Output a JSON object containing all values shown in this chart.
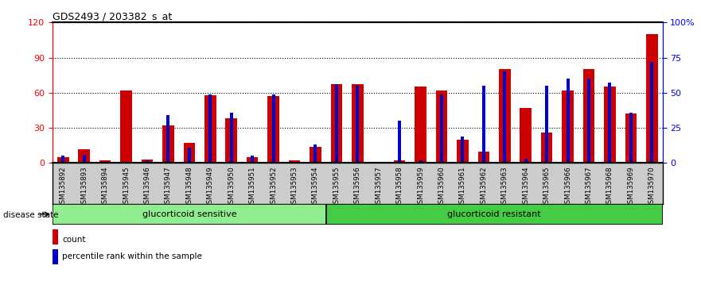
{
  "title": "GDS2493 / 203382_s_at",
  "categories": [
    "GSM135892",
    "GSM135893",
    "GSM135894",
    "GSM135945",
    "GSM135946",
    "GSM135947",
    "GSM135948",
    "GSM135949",
    "GSM135950",
    "GSM135951",
    "GSM135952",
    "GSM135953",
    "GSM135954",
    "GSM135955",
    "GSM135956",
    "GSM135957",
    "GSM135958",
    "GSM135959",
    "GSM135960",
    "GSM135961",
    "GSM135962",
    "GSM135963",
    "GSM135964",
    "GSM135965",
    "GSM135966",
    "GSM135967",
    "GSM135968",
    "GSM135969",
    "GSM135970"
  ],
  "count_values": [
    5,
    12,
    2,
    62,
    3,
    32,
    17,
    58,
    38,
    5,
    57,
    2,
    14,
    67,
    67,
    1,
    2,
    65,
    62,
    20,
    10,
    80,
    47,
    26,
    62,
    80,
    65,
    42,
    110
  ],
  "percentile_values": [
    5,
    6,
    1,
    1,
    2,
    34,
    11,
    49,
    36,
    5,
    49,
    1,
    13,
    56,
    55,
    1,
    30,
    2,
    49,
    19,
    55,
    65,
    3,
    55,
    60,
    60,
    57,
    36,
    72
  ],
  "n_sensitive": 13,
  "group_sensitive_label": "glucorticoid sensitive",
  "group_resistant_label": "glucorticoid resistant",
  "disease_state_label": "disease state",
  "legend_count": "count",
  "legend_percentile": "percentile rank within the sample",
  "count_color": "#cc0000",
  "percentile_color": "#0000cc",
  "tick_bg_color": "#cccccc",
  "sensitive_bg": "#90ee90",
  "resistant_bg": "#44cc44",
  "ylim_left": [
    0,
    120
  ],
  "ylim_right": [
    0,
    100
  ],
  "yticks_left": [
    0,
    30,
    60,
    90,
    120
  ],
  "yticks_right": [
    0,
    25,
    50,
    75,
    100
  ],
  "plot_bg": "#ffffff"
}
